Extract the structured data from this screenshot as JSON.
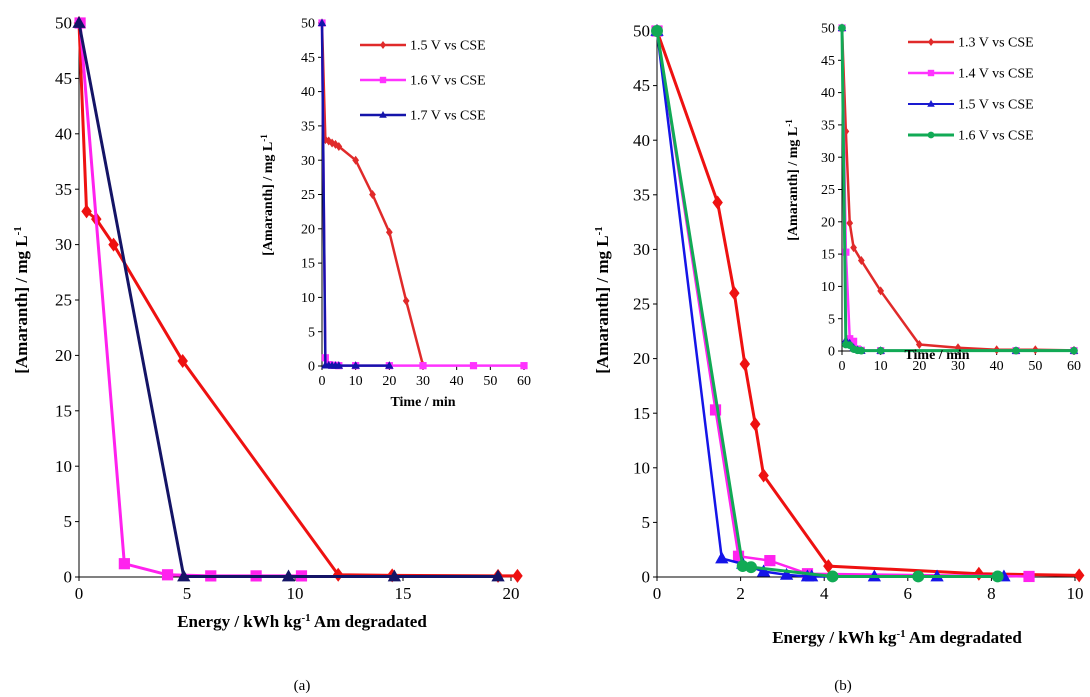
{
  "panel_labels": [
    "(a)",
    "(b)"
  ],
  "colors": {
    "red": "#ee1111",
    "magenta": "#ff22ee",
    "navy": "#141466",
    "blue": "#1515e8",
    "green": "#11aa55",
    "inset_red": "#e02a2a",
    "inset_magenta": "#ff33ff",
    "inset_navy": "#1414aa",
    "inset_blue": "#1a1ad0",
    "inset_green": "#11aa55"
  },
  "chart_data": [
    {
      "id": "a-main",
      "type": "line",
      "xlabel": "Energy  / kWh kg-1 Am degradated",
      "xlabel_parts": [
        "Energy  / kWh kg",
        "-1",
        " Am degradated"
      ],
      "ylabel": "[Amaranth]  / mg L-1",
      "ylabel_parts": [
        "[Amaranth]  / mg L",
        "-1"
      ],
      "xlim": [
        0,
        20
      ],
      "ylim": [
        0,
        50
      ],
      "xticks": [
        0,
        5,
        10,
        15,
        20
      ],
      "yticks": [
        0,
        5,
        10,
        15,
        20,
        25,
        30,
        35,
        40,
        45,
        50
      ],
      "series": [
        {
          "color_key": "red",
          "marker": "diamond",
          "lw": 3,
          "x": [
            0,
            0.35,
            0.8,
            1.6,
            4.8,
            12.0,
            14.5,
            19.4,
            20.3
          ],
          "y": [
            50,
            33,
            32.3,
            30,
            19.5,
            0.2,
            0.15,
            0.1,
            0.1
          ]
        },
        {
          "color_key": "magenta",
          "marker": "square",
          "lw": 3,
          "x": [
            0.05,
            2.1,
            4.1,
            6.1,
            8.2,
            10.3
          ],
          "y": [
            50,
            1.2,
            0.2,
            0.1,
            0.1,
            0.1
          ]
        },
        {
          "color_key": "navy",
          "marker": "triangle",
          "lw": 3,
          "x": [
            0,
            4.85,
            9.7,
            14.6,
            19.4
          ],
          "y": [
            50,
            0.05,
            0.05,
            0.05,
            0.05
          ]
        }
      ]
    },
    {
      "id": "a-inset",
      "type": "line",
      "xlabel": "Time / min",
      "ylabel": "[Amaranth] / mg L-1",
      "ylabel_parts": [
        "[Amaranth] / mg L",
        "-1"
      ],
      "xlim": [
        0,
        60
      ],
      "ylim": [
        0,
        50
      ],
      "xticks": [
        0,
        10,
        20,
        30,
        40,
        50,
        60
      ],
      "yticks": [
        0,
        5,
        10,
        15,
        20,
        25,
        30,
        35,
        40,
        45,
        50
      ],
      "legend_position": "top-right",
      "series": [
        {
          "name": "1.5 V vs CSE",
          "color_key": "inset_red",
          "marker": "diamond",
          "lw": 2.5,
          "x": [
            0,
            1,
            2,
            3,
            4,
            5,
            10,
            15,
            20,
            25,
            30
          ],
          "y": [
            50,
            33,
            32.8,
            32.5,
            32.3,
            32,
            30,
            25,
            19.5,
            9.5,
            0.1
          ]
        },
        {
          "name": "1.6 V vs CSE",
          "color_key": "inset_magenta",
          "marker": "square",
          "lw": 2.5,
          "x": [
            0,
            1,
            2,
            3,
            4,
            5,
            10,
            20,
            30,
            45,
            60
          ],
          "y": [
            50,
            1.2,
            0.2,
            0.1,
            0.1,
            0.05,
            0.05,
            0.05,
            0.05,
            0.05,
            0.05
          ]
        },
        {
          "name": "1.7 V vs CSE",
          "color_key": "inset_navy",
          "marker": "triangle",
          "lw": 2.5,
          "x": [
            0,
            1,
            2,
            3,
            4,
            5,
            10,
            20
          ],
          "y": [
            50,
            0.1,
            0.1,
            0.05,
            0.05,
            0.05,
            0.05,
            0.05
          ]
        }
      ]
    },
    {
      "id": "b-main",
      "type": "line",
      "xlabel": "Energy  / kWh kg-1 Am degradated",
      "xlabel_parts": [
        "Energy  / kWh kg",
        "-1",
        " Am degradated"
      ],
      "ylabel": "[Amaranth]  / mg L-1",
      "ylabel_parts": [
        "[Amaranth]  / mg L",
        "-1"
      ],
      "xlim": [
        0,
        10
      ],
      "ylim": [
        0,
        50
      ],
      "xticks": [
        0,
        2,
        4,
        6,
        8,
        10
      ],
      "yticks": [
        0,
        5,
        10,
        15,
        20,
        25,
        30,
        35,
        40,
        45,
        50
      ],
      "series": [
        {
          "color_key": "red",
          "marker": "diamond",
          "lw": 3,
          "x": [
            0,
            1.45,
            1.85,
            2.1,
            2.35,
            2.55,
            4.1,
            7.7,
            10.1
          ],
          "y": [
            50,
            34.3,
            26,
            19.5,
            14,
            9.3,
            1,
            0.3,
            0.15
          ]
        },
        {
          "color_key": "magenta",
          "marker": "square",
          "lw": 2.5,
          "x": [
            0,
            1.4,
            1.95,
            2.7,
            3.6,
            8.9
          ],
          "y": [
            50,
            15.3,
            1.9,
            1.5,
            0.3,
            0.05
          ]
        },
        {
          "color_key": "blue",
          "marker": "triangle",
          "lw": 2.5,
          "x": [
            0,
            1.55,
            2.05,
            2.55,
            3.1,
            3.6,
            3.7,
            5.2,
            6.7,
            8.3
          ],
          "y": [
            50,
            1.7,
            1.2,
            0.5,
            0.2,
            0.05,
            0.05,
            0.05,
            0.05,
            0.05
          ]
        },
        {
          "color_key": "green",
          "marker": "circle",
          "lw": 3,
          "x": [
            0,
            2.05,
            2.25,
            4.2,
            6.25,
            8.15
          ],
          "y": [
            50,
            1.0,
            0.9,
            0.05,
            0.05,
            0.05
          ]
        }
      ]
    },
    {
      "id": "b-inset",
      "type": "line",
      "xlabel": "Time / min",
      "ylabel": "[Amaranth] / mg L-1",
      "ylabel_parts": [
        "[Amaranth] / mg L",
        "-1"
      ],
      "xlim": [
        0,
        60
      ],
      "ylim": [
        0,
        50
      ],
      "xticks": [
        0,
        10,
        20,
        30,
        40,
        50,
        60
      ],
      "yticks": [
        0,
        5,
        10,
        15,
        20,
        25,
        30,
        35,
        40,
        45,
        50
      ],
      "legend_position": "top-right",
      "series": [
        {
          "name": "1.3 V vs CSE",
          "color_key": "inset_red",
          "marker": "diamond",
          "lw": 2.5,
          "x": [
            0,
            1,
            2,
            3,
            5,
            10,
            20,
            30,
            40,
            50,
            60
          ],
          "y": [
            50,
            34,
            19.8,
            16,
            14,
            9.3,
            1,
            0.5,
            0.2,
            0.2,
            0.1
          ]
        },
        {
          "name": "1.4 V vs CSE",
          "color_key": "inset_magenta",
          "marker": "square",
          "lw": 2.5,
          "x": [
            0,
            1,
            2,
            3,
            4,
            5,
            10,
            45,
            60
          ],
          "y": [
            50,
            15.3,
            1.9,
            1.5,
            0.3,
            0.1,
            0.05,
            0.05,
            0.05
          ]
        },
        {
          "name": "1.5 V vs CSE",
          "color_key": "inset_blue",
          "marker": "triangle",
          "lw": 2,
          "x": [
            0,
            1,
            2,
            3,
            4,
            5,
            10,
            45,
            60
          ],
          "y": [
            50,
            1.7,
            1.2,
            0.5,
            0.2,
            0.05,
            0.05,
            0.05,
            0.05
          ]
        },
        {
          "name": "1.6 V vs CSE",
          "color_key": "inset_green",
          "marker": "circle",
          "lw": 3,
          "x": [
            0,
            1,
            2,
            3,
            4,
            5,
            10,
            45,
            60
          ],
          "y": [
            50,
            1.0,
            0.9,
            0.3,
            0.1,
            0.05,
            0.05,
            0.05,
            0.05
          ]
        }
      ]
    }
  ]
}
